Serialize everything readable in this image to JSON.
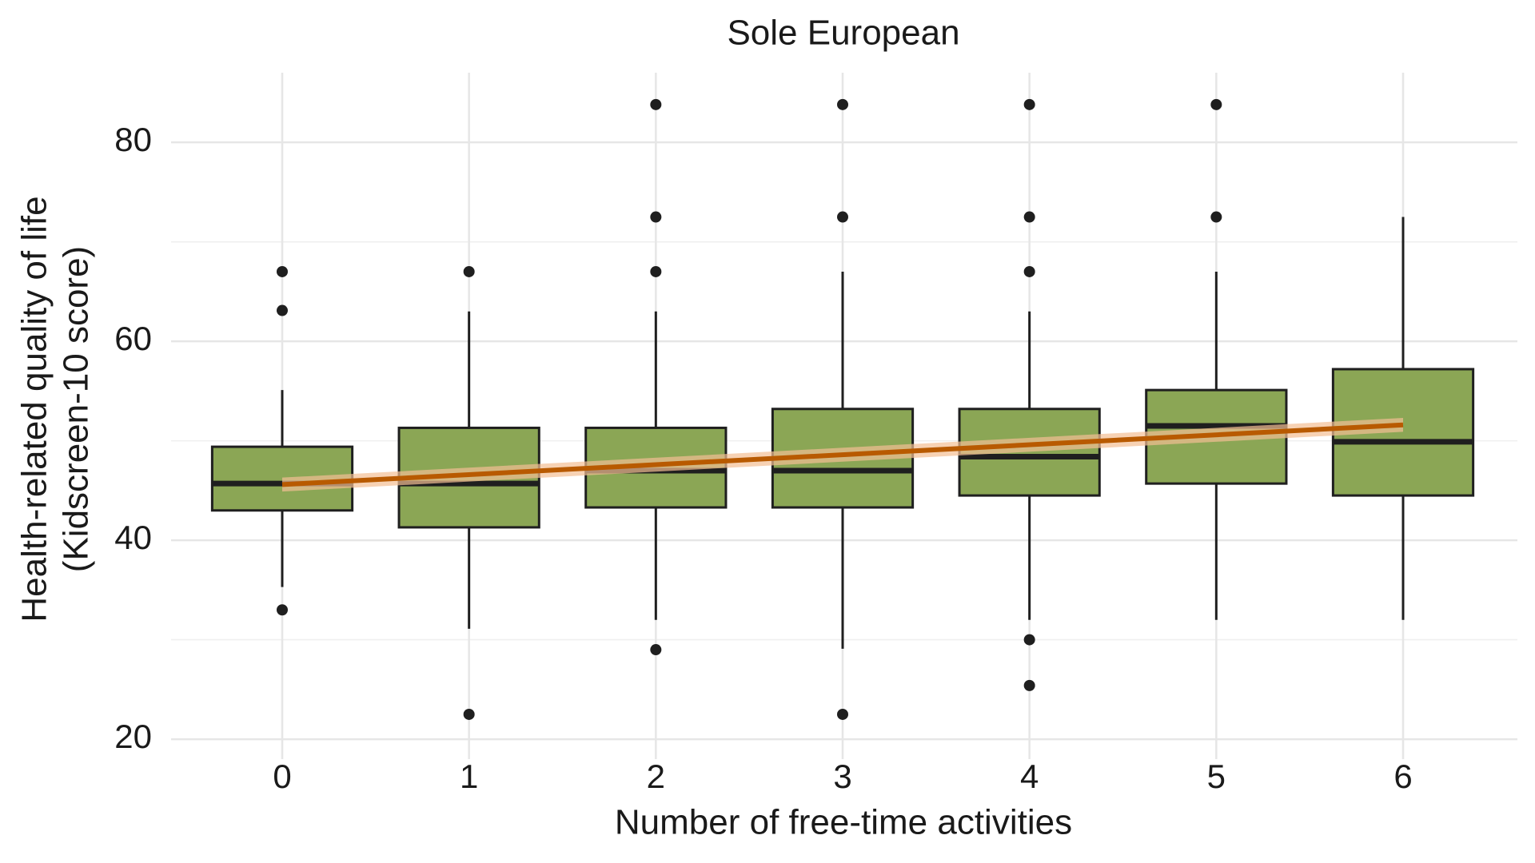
{
  "chart_data": {
    "type": "box",
    "title": "Sole European",
    "x_label": "Number of free-time activities",
    "y_label": [
      "Health-related quality of life",
      "(Kidscreen-10 score)"
    ],
    "categories": [
      "0",
      "1",
      "2",
      "3",
      "4",
      "5",
      "6"
    ],
    "boxes": [
      {
        "whisker_low": 35.3,
        "q1": 43.0,
        "median": 45.7,
        "q3": 49.4,
        "whisker_high": 55.1,
        "outliers": [
          67.0,
          63.1,
          33.0
        ]
      },
      {
        "whisker_low": 31.1,
        "q1": 41.3,
        "median": 45.7,
        "q3": 51.3,
        "whisker_high": 63.0,
        "outliers": [
          67.0,
          22.5
        ]
      },
      {
        "whisker_low": 32.0,
        "q1": 43.3,
        "median": 47.0,
        "q3": 51.3,
        "whisker_high": 63.0,
        "outliers": [
          83.8,
          72.5,
          67.0,
          29.0
        ]
      },
      {
        "whisker_low": 29.1,
        "q1": 43.3,
        "median": 47.0,
        "q3": 53.2,
        "whisker_high": 67.0,
        "outliers": [
          83.8,
          72.5,
          22.5
        ]
      },
      {
        "whisker_low": 32.0,
        "q1": 44.5,
        "median": 48.4,
        "q3": 53.2,
        "whisker_high": 63.0,
        "outliers": [
          83.8,
          72.5,
          67.0,
          30.0,
          25.4
        ]
      },
      {
        "whisker_low": 32.0,
        "q1": 45.7,
        "median": 51.5,
        "q3": 55.1,
        "whisker_high": 67.0,
        "outliers": [
          83.8,
          72.5
        ]
      },
      {
        "whisker_low": 32.0,
        "q1": 44.5,
        "median": 49.9,
        "q3": 57.2,
        "whisker_high": 72.5,
        "outliers": []
      }
    ],
    "trend": {
      "x": [
        0,
        6
      ],
      "values": [
        45.6,
        51.6
      ],
      "lower": [
        44.9,
        50.9
      ],
      "upper": [
        46.3,
        52.3
      ],
      "color": "#b85a00",
      "band_color": "#f4bf94"
    },
    "box_color": "#8ba655",
    "line_color": "#1f1f1f",
    "ylim": [
      18,
      87
    ],
    "yticks": [
      20,
      40,
      60,
      80
    ],
    "minor_yticks": [
      30,
      50,
      70
    ],
    "grid": true
  }
}
